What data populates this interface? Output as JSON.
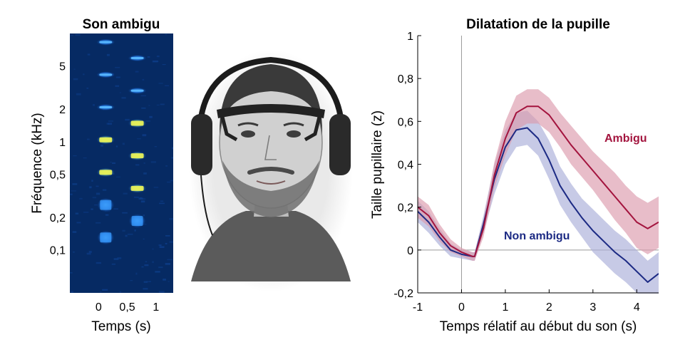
{
  "chart_data": [
    {
      "type": "heatmap",
      "title": "Son ambigu",
      "xlabel": "Temps (s)",
      "ylabel": "Fréquence (kHz)",
      "x_ticks": [
        {
          "value": 0,
          "label": "0"
        },
        {
          "value": 0.5,
          "label": "0,5"
        },
        {
          "value": 1,
          "label": "1"
        }
      ],
      "y_ticks": [
        {
          "value": 5,
          "label": "5"
        },
        {
          "value": 2,
          "label": "2"
        },
        {
          "value": 1,
          "label": "1"
        },
        {
          "value": 0.5,
          "label": "0,5"
        },
        {
          "value": 0.2,
          "label": "0,2"
        },
        {
          "value": 0.1,
          "label": "0,1"
        }
      ],
      "y_scale": "log",
      "xlim": [
        -0.5,
        1.3
      ],
      "ylim": [
        0.04,
        10
      ],
      "tones": [
        {
          "onset_s": 0,
          "harmonics_khz": [
            0.13,
            0.26,
            0.52,
            1.04,
            2.08,
            4.16,
            8.32
          ]
        },
        {
          "onset_s": 0.55,
          "harmonics_khz": [
            0.185,
            0.37,
            0.74,
            1.48,
            2.96,
            5.92
          ]
        }
      ]
    },
    {
      "type": "line",
      "title": "Dilatation de la pupille",
      "xlabel": "Temps rélatif au début du son (s)",
      "ylabel": "Taille pupillaire (z)",
      "xlim": [
        -1,
        4.5
      ],
      "ylim": [
        -0.2,
        1
      ],
      "x_ticks": [
        {
          "value": -1,
          "label": "-1"
        },
        {
          "value": 0,
          "label": "0"
        },
        {
          "value": 1,
          "label": "1"
        },
        {
          "value": 2,
          "label": "2"
        },
        {
          "value": 3,
          "label": "3"
        },
        {
          "value": 4,
          "label": "4"
        }
      ],
      "y_ticks": [
        {
          "value": -0.2,
          "label": "-0,2"
        },
        {
          "value": 0,
          "label": "0"
        },
        {
          "value": 0.2,
          "label": "0,2"
        },
        {
          "value": 0.4,
          "label": "0,4"
        },
        {
          "value": 0.6,
          "label": "0,6"
        },
        {
          "value": 0.8,
          "label": "0,8"
        },
        {
          "value": 1,
          "label": "1"
        }
      ],
      "reference_lines": {
        "x": 0,
        "y": 0
      },
      "series": [
        {
          "name": "Ambigu",
          "color": "#a3143e",
          "band_color": "#dc9aac",
          "x": [
            -1,
            -0.75,
            -0.5,
            -0.25,
            0,
            0.25,
            0.3,
            0.5,
            0.75,
            1,
            1.25,
            1.5,
            1.75,
            2,
            2.25,
            2.5,
            2.75,
            3,
            3.25,
            3.5,
            3.75,
            4,
            4.25,
            4.5
          ],
          "y": [
            0.2,
            0.16,
            0.08,
            0.02,
            -0.01,
            -0.03,
            -0.03,
            0.1,
            0.35,
            0.52,
            0.64,
            0.67,
            0.67,
            0.63,
            0.56,
            0.49,
            0.43,
            0.37,
            0.31,
            0.25,
            0.19,
            0.13,
            0.1,
            0.13
          ],
          "err": [
            0.05,
            0.05,
            0.04,
            0.03,
            0.02,
            0.02,
            0.02,
            0.04,
            0.06,
            0.08,
            0.08,
            0.08,
            0.08,
            0.08,
            0.08,
            0.09,
            0.09,
            0.09,
            0.1,
            0.11,
            0.11,
            0.12,
            0.12,
            0.12
          ]
        },
        {
          "name": "Non ambigu",
          "color": "#1c2a84",
          "band_color": "#a9add8",
          "x": [
            -1,
            -0.75,
            -0.5,
            -0.25,
            0,
            0.25,
            0.3,
            0.5,
            0.75,
            1,
            1.25,
            1.5,
            1.75,
            2,
            2.25,
            2.5,
            2.75,
            3,
            3.25,
            3.5,
            3.75,
            4,
            4.25,
            4.5
          ],
          "y": [
            0.18,
            0.13,
            0.06,
            0.0,
            -0.02,
            -0.03,
            -0.03,
            0.12,
            0.33,
            0.48,
            0.56,
            0.57,
            0.52,
            0.42,
            0.3,
            0.22,
            0.15,
            0.09,
            0.04,
            -0.01,
            -0.05,
            -0.1,
            -0.15,
            -0.11
          ],
          "err": [
            0.05,
            0.05,
            0.04,
            0.03,
            0.02,
            0.02,
            0.02,
            0.04,
            0.07,
            0.08,
            0.08,
            0.08,
            0.08,
            0.09,
            0.09,
            0.09,
            0.09,
            0.1,
            0.1,
            0.1,
            0.1,
            0.1,
            0.1,
            0.1
          ]
        }
      ]
    }
  ],
  "illustration": {
    "subject": "pencil-sketch portrait of a man wearing an eye tracker and headphones"
  }
}
